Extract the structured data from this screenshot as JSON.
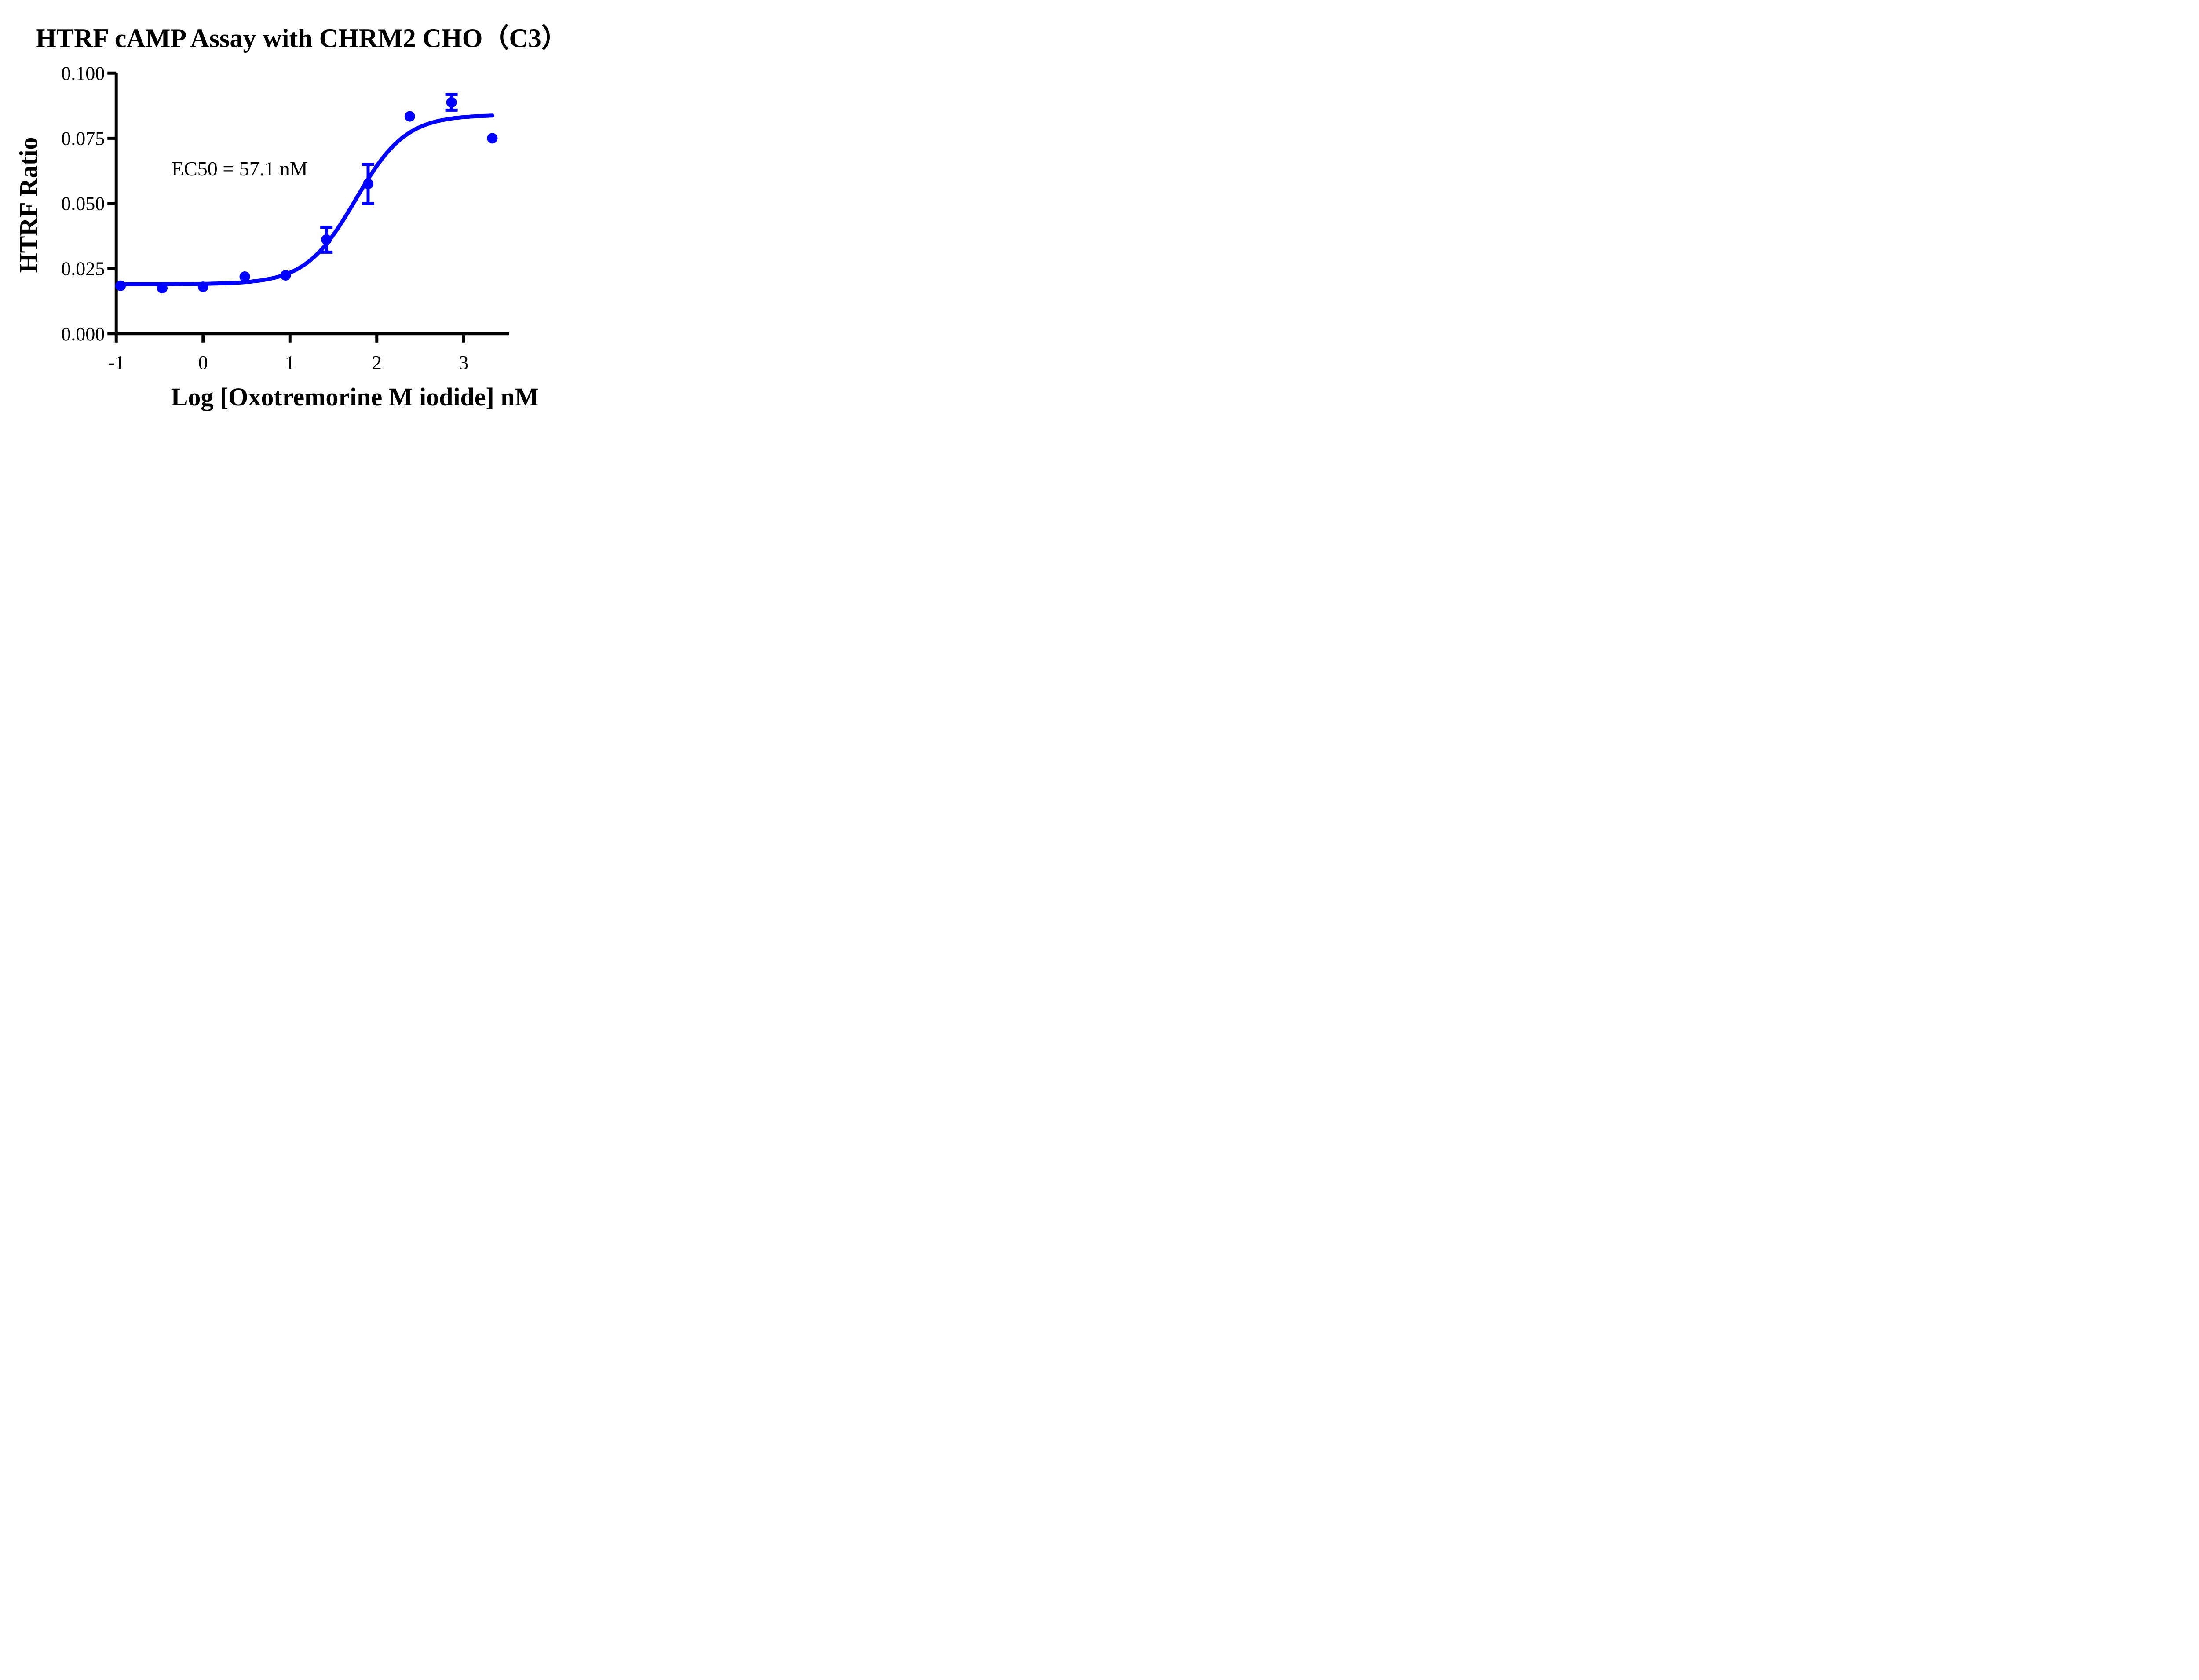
{
  "page": {
    "background": "#ffffff"
  },
  "chart_data": {
    "type": "scatter",
    "title": "HTRF cAMP Assay with CHRM2 CHO（C3）",
    "xlabel": "Log [Oxotremorine M iodide] nM",
    "ylabel": "HTRF Ratio",
    "annotation": "EC50 = 57.1 nM",
    "ec50_nM": 57.1,
    "series_color": "#0000ff",
    "axis_color": "#000000",
    "background_color": "#ffffff",
    "grid": false,
    "legend": "none",
    "xlim": [
      -1,
      3.55
    ],
    "ylim": [
      0,
      0.1
    ],
    "x_ticks": {
      "labels": [
        "-1",
        "0",
        "1",
        "2",
        "3"
      ],
      "values": [
        -1,
        0,
        1,
        2,
        3
      ]
    },
    "y_ticks": {
      "labels": [
        "0.000",
        "0.025",
        "0.050",
        "0.075",
        "0.100"
      ],
      "values": [
        0,
        0.025,
        0.05,
        0.075,
        0.1
      ]
    },
    "points": [
      {
        "x": -0.95,
        "y": 0.0184
      },
      {
        "x": -0.47,
        "y": 0.0175
      },
      {
        "x": 0.0,
        "y": 0.018
      },
      {
        "x": 0.48,
        "y": 0.0219
      },
      {
        "x": 0.95,
        "y": 0.0224
      },
      {
        "x": 1.42,
        "y": 0.0361,
        "err": 0.0048
      },
      {
        "x": 1.9,
        "y": 0.0575,
        "err": 0.0075
      },
      {
        "x": 2.38,
        "y": 0.0834
      },
      {
        "x": 2.86,
        "y": 0.0888,
        "err": 0.003
      },
      {
        "x": 3.33,
        "y": 0.075
      }
    ],
    "fit_curve": {
      "model": "4PL",
      "bottom": 0.019,
      "top": 0.084,
      "log_ec50": 1.757,
      "hill_slope": 1.5,
      "x_start": -0.95,
      "x_end": 3.33
    }
  }
}
